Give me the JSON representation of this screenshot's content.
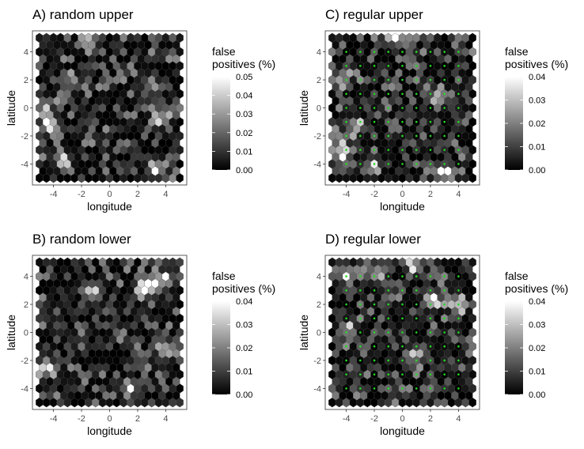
{
  "chart_data": [
    {
      "type": "heatmap",
      "title": "A) random upper",
      "xlabel": "longitude",
      "ylabel": "latitude",
      "xlim": [
        -5.5,
        5.5
      ],
      "ylim": [
        -5.5,
        5.5
      ],
      "xticks": [
        "-4",
        "-2",
        "0",
        "2",
        "4"
      ],
      "yticks": [
        "-4",
        "-2",
        "0",
        "2",
        "4"
      ],
      "legend": {
        "title_line1": "false",
        "title_line2": "positives (%)",
        "min": 0,
        "max": 0.05,
        "ticks": [
          "0.00",
          "0.01",
          "0.02",
          "0.03",
          "0.04",
          "0.05"
        ]
      },
      "grid": "hexagonal cells, approx. 0.5 spacing over -5..5 x -5..5",
      "site_markers": false,
      "seed": 11,
      "hotspots": [
        [
          -4.3,
          -1.2,
          0.05
        ],
        [
          3.3,
          -4.3,
          0.045
        ],
        [
          -3.3,
          -3.8,
          0.035
        ],
        [
          3.6,
          -0.6,
          0.035
        ],
        [
          -4.6,
          0.2,
          0.03
        ],
        [
          -1.5,
          4.8,
          0.03
        ],
        [
          3.0,
          1.5,
          0.025
        ],
        [
          -3.0,
          1.8,
          0.025
        ]
      ]
    },
    {
      "type": "heatmap",
      "title": "B) random lower",
      "xlabel": "longitude",
      "ylabel": "latitude",
      "xlim": [
        -5.5,
        5.5
      ],
      "ylim": [
        -5.5,
        5.5
      ],
      "xticks": [
        "-4",
        "-2",
        "0",
        "2",
        "4"
      ],
      "yticks": [
        "-4",
        "-2",
        "0",
        "2",
        "4"
      ],
      "legend": {
        "title_line1": "false",
        "title_line2": "positives (%)",
        "min": 0,
        "max": 0.04,
        "ticks": [
          "0.00",
          "0.01",
          "0.02",
          "0.03",
          "0.04"
        ]
      },
      "grid": "hexagonal cells, approx. 0.5 spacing over -5..5 x -5..5",
      "site_markers": false,
      "seed": 23,
      "hotspots": [
        [
          -1.2,
          2.9,
          0.04
        ],
        [
          2.5,
          3.3,
          0.04
        ],
        [
          3.0,
          3.5,
          0.035
        ],
        [
          4.2,
          -1.2,
          0.035
        ],
        [
          4.0,
          3.8,
          0.03
        ],
        [
          -4.4,
          -2.5,
          0.03
        ],
        [
          1.5,
          -4.0,
          0.025
        ]
      ]
    },
    {
      "type": "heatmap",
      "title": "C) regular upper",
      "xlabel": "longitude",
      "ylabel": "latitude",
      "xlim": [
        -5.5,
        5.5
      ],
      "ylim": [
        -5.5,
        5.5
      ],
      "xticks": [
        "-4",
        "-2",
        "0",
        "2",
        "4"
      ],
      "yticks": [
        "-4",
        "-2",
        "0",
        "2",
        "4"
      ],
      "legend": {
        "title_line1": "false",
        "title_line2": "positives (%)",
        "min": 0,
        "max": 0.04,
        "ticks": [
          "0.00",
          "0.01",
          "0.02",
          "0.03",
          "0.04"
        ]
      },
      "grid": "hexagonal cells, approx. 0.5 spacing over -5..5 x -5..5",
      "site_markers": true,
      "site_color": "#22dd22",
      "seed": 37,
      "hotspots": [
        [
          -4.2,
          -3.1,
          0.04
        ],
        [
          3.2,
          -4.6,
          0.04
        ],
        [
          -3.4,
          -1.3,
          0.03
        ],
        [
          -4.3,
          2.1,
          0.03
        ],
        [
          -0.4,
          5.0,
          0.03
        ],
        [
          2.6,
          0.8,
          0.028
        ],
        [
          -2.2,
          -4.2,
          0.022
        ]
      ]
    },
    {
      "type": "heatmap",
      "title": "D) regular lower",
      "xlabel": "longitude",
      "ylabel": "latitude",
      "xlim": [
        -5.5,
        5.5
      ],
      "ylim": [
        -5.5,
        5.5
      ],
      "xticks": [
        "-4",
        "-2",
        "0",
        "2",
        "4"
      ],
      "yticks": [
        "-4",
        "-2",
        "0",
        "2",
        "4"
      ],
      "legend": {
        "title_line1": "false",
        "title_line2": "positives (%)",
        "min": 0,
        "max": 0.04,
        "ticks": [
          "0.00",
          "0.01",
          "0.02",
          "0.03",
          "0.04"
        ]
      },
      "grid": "hexagonal cells, approx. 0.5 spacing over -5..5 x -5..5",
      "site_markers": true,
      "site_color": "#22dd22",
      "seed": 53,
      "hotspots": [
        [
          -4.0,
          4.2,
          0.035
        ],
        [
          2.1,
          2.4,
          0.04
        ],
        [
          3.9,
          2.0,
          0.035
        ],
        [
          0.9,
          4.8,
          0.03
        ],
        [
          -1.7,
          4.2,
          0.028
        ],
        [
          -3.9,
          0.2,
          0.025
        ],
        [
          1.1,
          -1.5,
          0.025
        ]
      ]
    }
  ]
}
